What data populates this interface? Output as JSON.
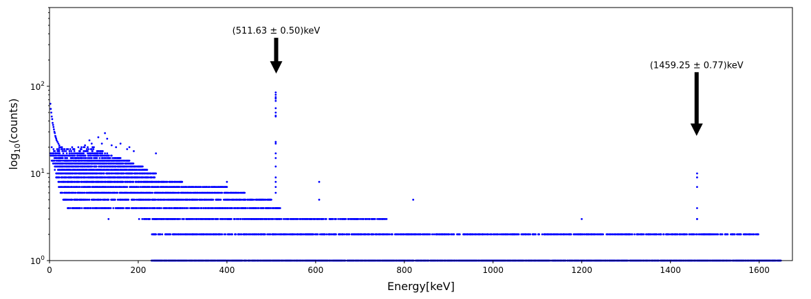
{
  "chart_data": {
    "type": "scatter",
    "xlabel": "Energy[keV]",
    "ylabel_base": "log",
    "ylabel_sub": "10",
    "ylabel_rest": "(counts)",
    "xlim": [
      0,
      1675
    ],
    "ylim": [
      1,
      800
    ],
    "yscale": "log",
    "x_ticks": [
      0,
      200,
      400,
      600,
      800,
      1000,
      1200,
      1400,
      1600
    ],
    "y_ticks": [
      {
        "value": 1,
        "mantissa": "10",
        "exp": "0"
      },
      {
        "value": 10,
        "mantissa": "10",
        "exp": "1"
      },
      {
        "value": 100,
        "mantissa": "10",
        "exp": "2"
      }
    ],
    "marker_color": "#0000ff",
    "grid": false,
    "series": [
      {
        "bands": [
          {
            "count": 1,
            "x_range": [
              230,
              1650
            ],
            "density": 0.9
          },
          {
            "count": 2,
            "x_range": [
              230,
              1600
            ],
            "density": 0.6
          },
          {
            "count": 3,
            "x_range": [
              200,
              760
            ],
            "density": 0.55
          },
          {
            "count": 4,
            "x_range": [
              40,
              520
            ],
            "density": 0.6
          },
          {
            "count": 5,
            "x_range": [
              30,
              500
            ],
            "density": 0.65
          },
          {
            "count": 6,
            "x_range": [
              25,
              440
            ],
            "density": 0.7
          },
          {
            "count": 7,
            "x_range": [
              20,
              400
            ],
            "density": 0.7
          },
          {
            "count": 8,
            "x_range": [
              20,
              300
            ],
            "density": 0.7
          },
          {
            "count": 9,
            "x_range": [
              15,
              240
            ],
            "density": 0.75
          },
          {
            "count": 10,
            "x_range": [
              15,
              240
            ],
            "density": 0.75
          },
          {
            "count": 11,
            "x_range": [
              12,
              220
            ],
            "density": 0.8
          },
          {
            "count": 12,
            "x_range": [
              10,
              210
            ],
            "density": 0.8
          },
          {
            "count": 13,
            "x_range": [
              8,
              190
            ],
            "density": 0.8
          },
          {
            "count": 14,
            "x_range": [
              5,
              180
            ],
            "density": 0.7
          },
          {
            "count": 15,
            "x_range": [
              5,
              160
            ],
            "density": 0.55
          },
          {
            "count": 16,
            "x_range": [
              3,
              140
            ],
            "density": 0.45
          },
          {
            "count": 17,
            "x_range": [
              2,
              130
            ],
            "density": 0.35
          },
          {
            "count": 18,
            "x_range": [
              1,
              120
            ],
            "density": 0.25
          },
          {
            "count": 19,
            "x_range": [
              1,
              110
            ],
            "density": 0.2
          },
          {
            "count": 20,
            "x_range": [
              1,
              100
            ],
            "density": 0.15
          }
        ],
        "points": [
          [
            2,
            63
          ],
          [
            3,
            55
          ],
          [
            4,
            50
          ],
          [
            5,
            45
          ],
          [
            6,
            42
          ],
          [
            7,
            38
          ],
          [
            8,
            36
          ],
          [
            9,
            34
          ],
          [
            10,
            32
          ],
          [
            11,
            30
          ],
          [
            12,
            29
          ],
          [
            13,
            27
          ],
          [
            14,
            26
          ],
          [
            15,
            25
          ],
          [
            16,
            24
          ],
          [
            18,
            23
          ],
          [
            20,
            22
          ],
          [
            22,
            21
          ],
          [
            25,
            20
          ],
          [
            28,
            19
          ],
          [
            80,
            21
          ],
          [
            90,
            24
          ],
          [
            95,
            22
          ],
          [
            100,
            20
          ],
          [
            110,
            26
          ],
          [
            118,
            22
          ],
          [
            125,
            29
          ],
          [
            130,
            25
          ],
          [
            140,
            21
          ],
          [
            150,
            20
          ],
          [
            160,
            22
          ],
          [
            175,
            19
          ],
          [
            180,
            20
          ],
          [
            190,
            18
          ],
          [
            240,
            17
          ],
          [
            510,
            85
          ],
          [
            510,
            80
          ],
          [
            510,
            75
          ],
          [
            510,
            72
          ],
          [
            510,
            68
          ],
          [
            510,
            56
          ],
          [
            510,
            50
          ],
          [
            510,
            46
          ],
          [
            510,
            45
          ],
          [
            510,
            23
          ],
          [
            510,
            22
          ],
          [
            510,
            17
          ],
          [
            510,
            15
          ],
          [
            510,
            12
          ],
          [
            510,
            9
          ],
          [
            510,
            8
          ],
          [
            510,
            7
          ],
          [
            510,
            6
          ],
          [
            133,
            3
          ],
          [
            180,
            4
          ],
          [
            400,
            8
          ],
          [
            608,
            8
          ],
          [
            608,
            5
          ],
          [
            820,
            5
          ],
          [
            1200,
            3
          ],
          [
            1460,
            10
          ],
          [
            1460,
            9
          ],
          [
            1460,
            7
          ],
          [
            1460,
            4
          ],
          [
            1460,
            3
          ],
          [
            1460,
            3
          ]
        ]
      }
    ],
    "annotations": [
      {
        "text": "(511.63 ± 0.50)keV",
        "x": 511,
        "y_tip": 140,
        "y_tail": 360
      },
      {
        "text": "(1459.25 ± 0.77)keV",
        "x": 1459,
        "y_tip": 27,
        "y_tail": 145
      }
    ]
  }
}
